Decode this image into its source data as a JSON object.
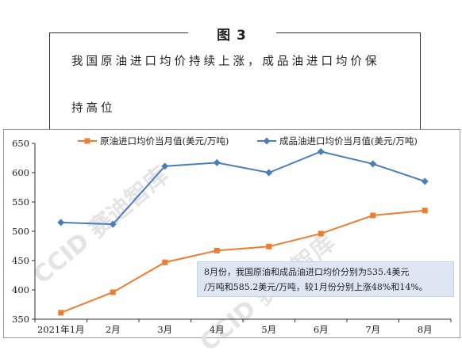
{
  "figure": {
    "label": "图 3",
    "caption_line1": "我国原油进口均价持续上涨，成品油进口均价保",
    "caption_line2": "持高位"
  },
  "watermark": {
    "text": "CCID 赛迪智库",
    "color": "#e4e4e4"
  },
  "annotation": {
    "line1": "8月份，我国原油和成品油进口均价分别为535.4美元",
    "line2": "/万吨和585.2美元/万吨，较1月份分别上涨48%和14%。"
  },
  "chart_data": {
    "type": "line",
    "categories": [
      "2021年1月",
      "2月",
      "3月",
      "4月",
      "5月",
      "6月",
      "7月",
      "8月"
    ],
    "ylim": [
      350,
      650
    ],
    "yticks": [
      350,
      400,
      450,
      500,
      550,
      600,
      650
    ],
    "series": [
      {
        "name": "原油进口均价当月值(美元/万吨)",
        "color": "#ed7d31",
        "marker": "square",
        "values": [
          361,
          396,
          447,
          467,
          474,
          496,
          527,
          535.4
        ]
      },
      {
        "name": "成品油进口均价当月值(美元/万吨)",
        "color": "#4a7ebb",
        "marker": "diamond",
        "values": [
          515,
          512,
          611,
          617,
          600,
          636,
          615,
          585.2
        ]
      }
    ],
    "grid": false,
    "legend_position": "top"
  }
}
